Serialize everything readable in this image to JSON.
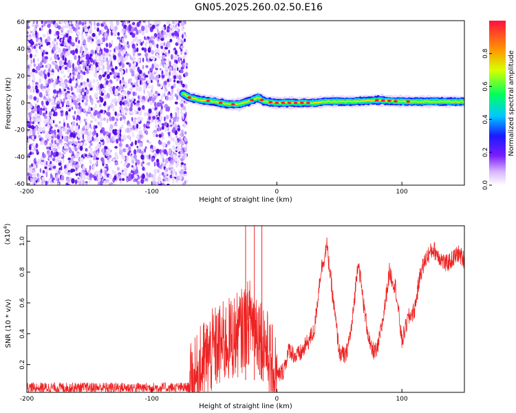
{
  "title": "GN05.2025.260.02.50.E16",
  "chart_data": [
    {
      "type": "heatmap",
      "name": "spectrogram",
      "xlabel": "Height of straight line (km)",
      "ylabel": "Frequency (Hz)",
      "xlim": [
        -200,
        150
      ],
      "ylim": [
        -61,
        61
      ],
      "xticks": [
        -200,
        -100,
        0,
        100
      ],
      "xtick_labels": [
        "-200",
        "-100",
        "0",
        "100"
      ],
      "yticks": [
        60,
        40,
        20,
        0,
        -20,
        -40,
        -60
      ],
      "ytick_labels": [
        "60",
        "40",
        "20",
        "0",
        "-20",
        "-40",
        "-60"
      ],
      "noise_region_x": [
        -200,
        -72
      ],
      "signal_track": {
        "x": [
          -75,
          -70,
          -60,
          -50,
          -40,
          -30,
          -20,
          -15,
          -10,
          0,
          10,
          20,
          30,
          40,
          60,
          80,
          100,
          120,
          150
        ],
        "y": [
          7,
          4,
          2,
          1,
          -1,
          -1,
          2,
          4,
          1,
          0,
          0,
          0,
          0,
          1,
          1,
          2,
          1,
          1,
          1
        ]
      },
      "colorbar": {
        "label": "Normalized spectral amplitude",
        "range": [
          0.0,
          1.0
        ],
        "ticks": [
          0.0,
          0.2,
          0.4,
          0.6,
          0.8
        ],
        "tick_labels": [
          "0.0",
          "0.2",
          "0.4",
          "0.6",
          "0.8"
        ]
      }
    },
    {
      "type": "line",
      "name": "snr",
      "xlabel": "Height of straight line (km)",
      "ylabel": "SNR (10 * v/v)",
      "multiplier": "(x10",
      "multiplier_exp": "4",
      "xlim": [
        -200,
        150
      ],
      "ylim": [
        0.02,
        1.1
      ],
      "xticks": [
        -200,
        -100,
        0,
        100
      ],
      "xtick_labels": [
        "-200",
        "-100",
        "0",
        "100"
      ],
      "yticks": [
        1.0,
        0.8,
        0.6,
        0.4,
        0.2
      ],
      "ytick_labels": [
        "1.0",
        "0.8",
        "0.6",
        "0.4",
        "0.2"
      ],
      "color": "#ee2222",
      "series": {
        "x": [
          -200,
          -70,
          -65,
          -60,
          -50,
          -40,
          -30,
          -20,
          -10,
          -5,
          0,
          5,
          10,
          15,
          20,
          30,
          35,
          40,
          45,
          50,
          55,
          60,
          65,
          70,
          75,
          80,
          85,
          90,
          95,
          100,
          105,
          110,
          115,
          120,
          125,
          130,
          135,
          140,
          145,
          150
        ],
        "y": [
          0.05,
          0.05,
          0.1,
          0.2,
          0.3,
          0.35,
          0.4,
          0.5,
          0.35,
          0.2,
          0.12,
          0.16,
          0.3,
          0.25,
          0.28,
          0.42,
          0.8,
          0.97,
          0.62,
          0.28,
          0.25,
          0.45,
          0.88,
          0.55,
          0.3,
          0.28,
          0.5,
          0.8,
          0.7,
          0.35,
          0.5,
          0.55,
          0.8,
          0.9,
          0.95,
          0.9,
          0.85,
          0.88,
          0.92,
          0.88
        ]
      },
      "spikes": [
        -25,
        -18,
        -12
      ]
    }
  ]
}
